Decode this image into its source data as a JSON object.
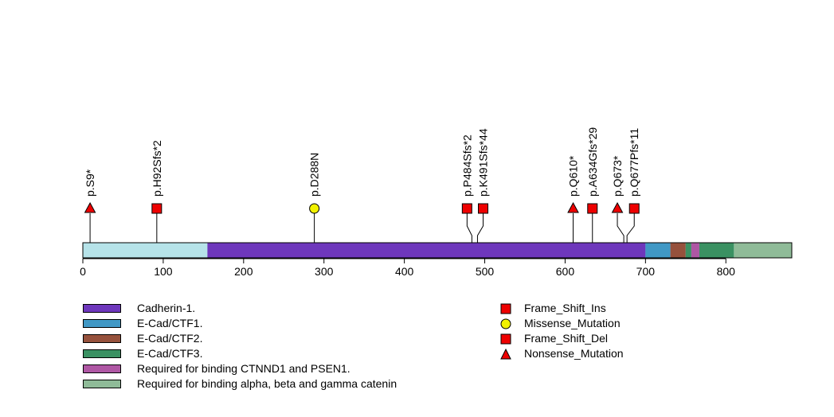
{
  "chart_data": {
    "type": "lollipop",
    "protein_length": 882,
    "xlim": [
      0,
      882
    ],
    "x_ticks": [
      0,
      100,
      200,
      300,
      400,
      500,
      600,
      700,
      800
    ],
    "backbone_color": "#b6e3e9",
    "domains": [
      {
        "name": "Cadherin-1.",
        "start": 155,
        "end": 700,
        "color": "#6e37bc"
      },
      {
        "name": "E-Cad/CTF1.",
        "start": 700,
        "end": 731,
        "color": "#4098c5"
      },
      {
        "name": "E-Cad/CTF2.",
        "start": 731,
        "end": 750,
        "color": "#96513c"
      },
      {
        "name": "E-Cad/CTF3.",
        "start": 750,
        "end": 757,
        "color": "#3a9162"
      },
      {
        "name": "Required for binding CTNND1 and PSEN1.",
        "start": 757,
        "end": 767,
        "color": "#af57a4"
      },
      {
        "name": "E-Cad/CTF3.",
        "start": 767,
        "end": 810,
        "color": "#3a9162"
      },
      {
        "name": "Required for binding alpha, beta and gamma catenin",
        "start": 810,
        "end": 882,
        "color": "#8fbb98"
      }
    ],
    "mutations": [
      {
        "label": "p.S9*",
        "position": 9,
        "display": 9,
        "type": "Nonsense_Mutation"
      },
      {
        "label": "p.H92Sfs*2",
        "position": 92,
        "display": 92,
        "type": "Frame_Shift_Ins"
      },
      {
        "label": "p.D288N",
        "position": 288,
        "display": 288,
        "type": "Missense_Mutation"
      },
      {
        "label": "p.P484Sfs*2",
        "position": 484,
        "display": 478,
        "type": "Frame_Shift_Ins"
      },
      {
        "label": "p.K491Sfs*44",
        "position": 491,
        "display": 498,
        "type": "Frame_Shift_Ins"
      },
      {
        "label": "p.Q610*",
        "position": 610,
        "display": 610,
        "type": "Nonsense_Mutation"
      },
      {
        "label": "p.A634Gfs*29",
        "position": 634,
        "display": 634,
        "type": "Frame_Shift_Del"
      },
      {
        "label": "p.Q673*",
        "position": 673,
        "display": 665,
        "type": "Nonsense_Mutation"
      },
      {
        "label": "p.Q677Pfs*11",
        "position": 677,
        "display": 686,
        "type": "Frame_Shift_Del"
      }
    ],
    "domain_legend": [
      {
        "label": "Cadherin-1.",
        "color": "#6e37bc"
      },
      {
        "label": "E-Cad/CTF1.",
        "color": "#4098c5"
      },
      {
        "label": "E-Cad/CTF2.",
        "color": "#96513c"
      },
      {
        "label": "E-Cad/CTF3.",
        "color": "#3a9162"
      },
      {
        "label": "Required for binding CTNND1 and PSEN1.",
        "color": "#af57a4"
      },
      {
        "label": "Required for binding alpha, beta and gamma catenin",
        "color": "#8fbb98"
      }
    ],
    "mutation_legend": [
      {
        "label": "Frame_Shift_Ins",
        "shape": "square",
        "color": "#ee0000"
      },
      {
        "label": "Missense_Mutation",
        "shape": "circle",
        "color": "#f2f200"
      },
      {
        "label": "Frame_Shift_Del",
        "shape": "square",
        "color": "#ee0000"
      },
      {
        "label": "Nonsense_Mutation",
        "shape": "triangle",
        "color": "#ee0000"
      }
    ]
  }
}
